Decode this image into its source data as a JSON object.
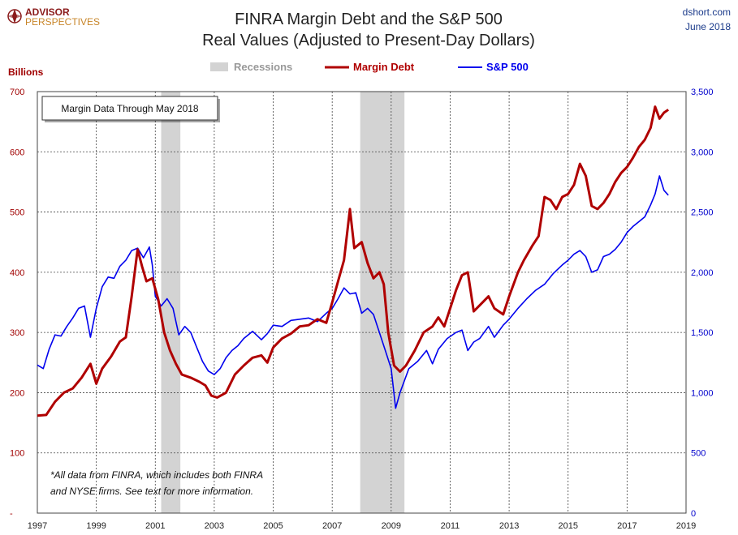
{
  "header": {
    "logo_line1": "ADVISOR",
    "logo_line2": "PERSPECTIVES",
    "source": "dshort.com",
    "date": "June 2018"
  },
  "chart_data": {
    "type": "line",
    "title": "FINRA Margin Debt and the S&P 500",
    "subtitle": "Real Values (Adjusted to Present-Day Dollars)",
    "ylabel_left": "Billions",
    "legend_location": "top-center",
    "legend": {
      "recessions": "Recessions",
      "margin": "Margin Debt",
      "sp": "S&P 500"
    },
    "annotation_box": "Margin Data Through May 2018",
    "footnote_line1": "*All data from FINRA, which includes both FINRA",
    "footnote_line2": "and NYSE firms. See text for more information.",
    "xlim": [
      1997,
      2019
    ],
    "x_ticks": [
      "1997",
      "1999",
      "2001",
      "2003",
      "2005",
      "2007",
      "2009",
      "2011",
      "2013",
      "2015",
      "2017",
      "2019"
    ],
    "ylim_left": [
      0,
      700
    ],
    "ylim_right": [
      0,
      3500
    ],
    "y_ticks_left": [
      "-",
      "100",
      "200",
      "300",
      "400",
      "500",
      "600",
      "700"
    ],
    "y_ticks_right": [
      "0",
      "500",
      "1,000",
      "1,500",
      "2,000",
      "2,500",
      "3,000",
      "3,500"
    ],
    "grid": true,
    "recessions": [
      [
        2001.2,
        2001.85
      ],
      [
        2007.95,
        2009.45
      ]
    ],
    "series": [
      {
        "name": "Margin Debt",
        "axis": "left",
        "color": "#b00000",
        "points": [
          [
            1997.0,
            162
          ],
          [
            1997.3,
            163
          ],
          [
            1997.6,
            185
          ],
          [
            1997.9,
            200
          ],
          [
            1998.2,
            207
          ],
          [
            1998.5,
            225
          ],
          [
            1998.8,
            248
          ],
          [
            1999.0,
            215
          ],
          [
            1999.2,
            240
          ],
          [
            1999.5,
            260
          ],
          [
            1999.8,
            285
          ],
          [
            2000.0,
            292
          ],
          [
            2000.2,
            360
          ],
          [
            2000.4,
            438
          ],
          [
            2000.55,
            410
          ],
          [
            2000.7,
            385
          ],
          [
            2000.9,
            390
          ],
          [
            2001.1,
            355
          ],
          [
            2001.3,
            300
          ],
          [
            2001.5,
            270
          ],
          [
            2001.7,
            248
          ],
          [
            2001.9,
            230
          ],
          [
            2002.2,
            225
          ],
          [
            2002.5,
            218
          ],
          [
            2002.7,
            212
          ],
          [
            2002.9,
            195
          ],
          [
            2003.1,
            192
          ],
          [
            2003.4,
            200
          ],
          [
            2003.7,
            230
          ],
          [
            2004.0,
            245
          ],
          [
            2004.3,
            258
          ],
          [
            2004.6,
            262
          ],
          [
            2004.8,
            250
          ],
          [
            2005.0,
            275
          ],
          [
            2005.3,
            290
          ],
          [
            2005.6,
            298
          ],
          [
            2005.9,
            310
          ],
          [
            2006.2,
            312
          ],
          [
            2006.5,
            322
          ],
          [
            2006.8,
            316
          ],
          [
            2007.0,
            350
          ],
          [
            2007.2,
            385
          ],
          [
            2007.4,
            420
          ],
          [
            2007.6,
            505
          ],
          [
            2007.75,
            440
          ],
          [
            2008.0,
            450
          ],
          [
            2008.2,
            415
          ],
          [
            2008.4,
            390
          ],
          [
            2008.6,
            400
          ],
          [
            2008.75,
            380
          ],
          [
            2008.9,
            300
          ],
          [
            2009.1,
            245
          ],
          [
            2009.3,
            235
          ],
          [
            2009.5,
            245
          ],
          [
            2009.8,
            270
          ],
          [
            2010.1,
            300
          ],
          [
            2010.4,
            310
          ],
          [
            2010.6,
            325
          ],
          [
            2010.8,
            310
          ],
          [
            2011.0,
            340
          ],
          [
            2011.2,
            370
          ],
          [
            2011.4,
            395
          ],
          [
            2011.6,
            400
          ],
          [
            2011.8,
            335
          ],
          [
            2012.0,
            345
          ],
          [
            2012.3,
            360
          ],
          [
            2012.5,
            340
          ],
          [
            2012.8,
            330
          ],
          [
            2013.0,
            360
          ],
          [
            2013.3,
            400
          ],
          [
            2013.5,
            420
          ],
          [
            2013.8,
            445
          ],
          [
            2014.0,
            460
          ],
          [
            2014.2,
            525
          ],
          [
            2014.4,
            520
          ],
          [
            2014.6,
            505
          ],
          [
            2014.8,
            525
          ],
          [
            2015.0,
            530
          ],
          [
            2015.2,
            545
          ],
          [
            2015.4,
            580
          ],
          [
            2015.6,
            560
          ],
          [
            2015.8,
            510
          ],
          [
            2016.0,
            505
          ],
          [
            2016.2,
            515
          ],
          [
            2016.4,
            530
          ],
          [
            2016.6,
            550
          ],
          [
            2016.8,
            565
          ],
          [
            2017.0,
            575
          ],
          [
            2017.2,
            590
          ],
          [
            2017.4,
            608
          ],
          [
            2017.6,
            620
          ],
          [
            2017.8,
            640
          ],
          [
            2017.95,
            675
          ],
          [
            2018.1,
            655
          ],
          [
            2018.25,
            665
          ],
          [
            2018.4,
            670
          ]
        ]
      },
      {
        "name": "S&P 500",
        "axis": "right",
        "color": "#0000ee",
        "points": [
          [
            1997.0,
            1230
          ],
          [
            1997.2,
            1200
          ],
          [
            1997.4,
            1360
          ],
          [
            1997.6,
            1480
          ],
          [
            1997.8,
            1470
          ],
          [
            1998.0,
            1550
          ],
          [
            1998.2,
            1620
          ],
          [
            1998.4,
            1700
          ],
          [
            1998.6,
            1720
          ],
          [
            1998.8,
            1460
          ],
          [
            1999.0,
            1700
          ],
          [
            1999.2,
            1880
          ],
          [
            1999.4,
            1960
          ],
          [
            1999.6,
            1950
          ],
          [
            1999.8,
            2050
          ],
          [
            2000.0,
            2100
          ],
          [
            2000.2,
            2180
          ],
          [
            2000.4,
            2200
          ],
          [
            2000.6,
            2120
          ],
          [
            2000.8,
            2210
          ],
          [
            2000.9,
            2060
          ],
          [
            2001.0,
            1800
          ],
          [
            2001.2,
            1720
          ],
          [
            2001.4,
            1780
          ],
          [
            2001.6,
            1700
          ],
          [
            2001.8,
            1480
          ],
          [
            2002.0,
            1550
          ],
          [
            2002.2,
            1500
          ],
          [
            2002.4,
            1380
          ],
          [
            2002.6,
            1260
          ],
          [
            2002.8,
            1180
          ],
          [
            2003.0,
            1150
          ],
          [
            2003.2,
            1200
          ],
          [
            2003.4,
            1290
          ],
          [
            2003.6,
            1350
          ],
          [
            2003.8,
            1390
          ],
          [
            2004.0,
            1450
          ],
          [
            2004.3,
            1510
          ],
          [
            2004.6,
            1440
          ],
          [
            2004.8,
            1490
          ],
          [
            2005.0,
            1560
          ],
          [
            2005.3,
            1550
          ],
          [
            2005.6,
            1600
          ],
          [
            2005.9,
            1610
          ],
          [
            2006.2,
            1620
          ],
          [
            2006.5,
            1590
          ],
          [
            2006.8,
            1660
          ],
          [
            2007.0,
            1700
          ],
          [
            2007.2,
            1780
          ],
          [
            2007.4,
            1870
          ],
          [
            2007.6,
            1820
          ],
          [
            2007.8,
            1830
          ],
          [
            2008.0,
            1660
          ],
          [
            2008.2,
            1700
          ],
          [
            2008.4,
            1650
          ],
          [
            2008.6,
            1500
          ],
          [
            2008.8,
            1350
          ],
          [
            2009.0,
            1200
          ],
          [
            2009.15,
            870
          ],
          [
            2009.3,
            1000
          ],
          [
            2009.6,
            1200
          ],
          [
            2009.9,
            1260
          ],
          [
            2010.2,
            1350
          ],
          [
            2010.4,
            1240
          ],
          [
            2010.6,
            1360
          ],
          [
            2010.9,
            1450
          ],
          [
            2011.2,
            1500
          ],
          [
            2011.4,
            1520
          ],
          [
            2011.6,
            1350
          ],
          [
            2011.8,
            1420
          ],
          [
            2012.0,
            1450
          ],
          [
            2012.3,
            1550
          ],
          [
            2012.5,
            1460
          ],
          [
            2012.8,
            1560
          ],
          [
            2013.0,
            1610
          ],
          [
            2013.3,
            1700
          ],
          [
            2013.6,
            1780
          ],
          [
            2013.9,
            1850
          ],
          [
            2014.2,
            1900
          ],
          [
            2014.5,
            1990
          ],
          [
            2014.8,
            2060
          ],
          [
            2015.0,
            2100
          ],
          [
            2015.2,
            2150
          ],
          [
            2015.4,
            2180
          ],
          [
            2015.6,
            2130
          ],
          [
            2015.8,
            2000
          ],
          [
            2016.0,
            2020
          ],
          [
            2016.2,
            2130
          ],
          [
            2016.4,
            2150
          ],
          [
            2016.6,
            2190
          ],
          [
            2016.8,
            2250
          ],
          [
            2017.0,
            2330
          ],
          [
            2017.2,
            2380
          ],
          [
            2017.4,
            2420
          ],
          [
            2017.6,
            2460
          ],
          [
            2017.8,
            2560
          ],
          [
            2017.95,
            2650
          ],
          [
            2018.1,
            2800
          ],
          [
            2018.25,
            2680
          ],
          [
            2018.4,
            2640
          ]
        ]
      }
    ]
  }
}
